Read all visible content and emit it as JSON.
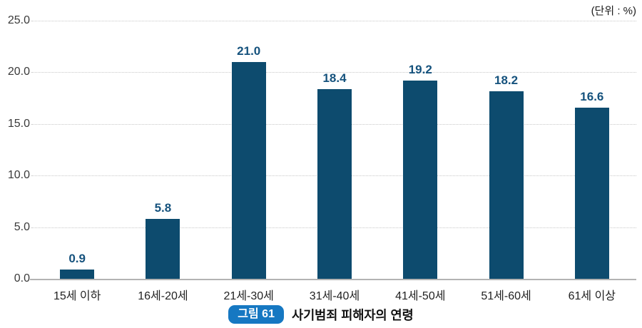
{
  "unit_label": "(단위 : %)",
  "caption": {
    "badge": "그림 61",
    "title": "사기범죄 피해자의 연령"
  },
  "colors": {
    "bar": "#0d4b6e",
    "value_label": "#15527d",
    "badge": "#1678c2",
    "gridline": "#c8c8c8",
    "axis_line": "#b3b3b3",
    "tick_text": "#3a3a3a"
  },
  "chart_data": {
    "type": "bar",
    "title": "사기범죄 피해자의 연령",
    "unit": "(단위 : %)",
    "categories": [
      "15세 이하",
      "16세-20세",
      "21세-30세",
      "31세-40세",
      "41세-50세",
      "51세-60세",
      "61세 이상"
    ],
    "values": [
      0.9,
      5.8,
      21.0,
      18.4,
      19.2,
      18.2,
      16.6
    ],
    "value_labels": [
      "0.9",
      "5.8",
      "21.0",
      "18.4",
      "19.2",
      "18.2",
      "16.6"
    ],
    "xlabel": "",
    "ylabel": "",
    "ylim": [
      0,
      25
    ],
    "ytick_labels": [
      "0.0",
      "5.0",
      "10.0",
      "15.0",
      "20.0",
      "25.0"
    ],
    "ytick_values": [
      0,
      5,
      10,
      15,
      20,
      25
    ],
    "grid": "horizontal-dotted",
    "legend": "none"
  }
}
